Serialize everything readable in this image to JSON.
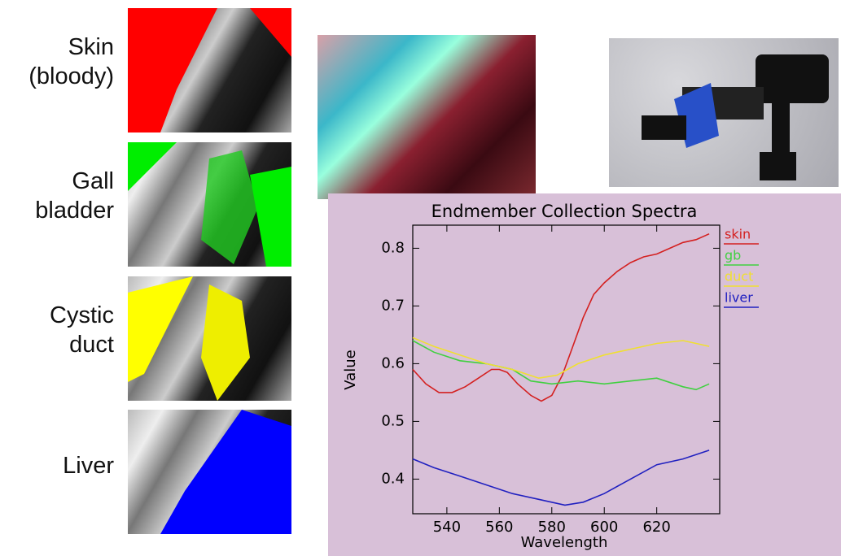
{
  "labels": [
    [
      "Skin",
      "(bloody)"
    ],
    [
      "Gall",
      "bladder"
    ],
    [
      "Cystic",
      "duct"
    ],
    [
      "Liver"
    ]
  ],
  "chart_data": {
    "type": "line",
    "title": "Endmember Collection Spectra",
    "x_label": "Wavelength",
    "y_label": "Value",
    "xlim": [
      527,
      644
    ],
    "xticks": [
      540,
      560,
      580,
      600,
      620
    ],
    "ylim": [
      0.34,
      0.84
    ],
    "yticks": [
      0.4,
      0.5,
      0.6,
      0.7,
      0.8
    ],
    "series": [
      {
        "name": "skin",
        "color": "#d42020",
        "x": [
          527,
          532,
          537,
          542,
          547,
          552,
          557,
          560,
          563,
          567,
          572,
          576,
          580,
          584,
          588,
          592,
          596,
          600,
          605,
          610,
          615,
          620,
          625,
          630,
          635,
          640
        ],
        "values": [
          0.59,
          0.565,
          0.55,
          0.55,
          0.56,
          0.575,
          0.59,
          0.59,
          0.585,
          0.565,
          0.545,
          0.535,
          0.545,
          0.58,
          0.63,
          0.68,
          0.72,
          0.74,
          0.76,
          0.775,
          0.785,
          0.79,
          0.8,
          0.81,
          0.815,
          0.825
        ]
      },
      {
        "name": "gb",
        "color": "#40d040",
        "x": [
          527,
          535,
          545,
          555,
          565,
          572,
          580,
          590,
          600,
          610,
          620,
          630,
          635,
          640
        ],
        "values": [
          0.64,
          0.62,
          0.605,
          0.6,
          0.59,
          0.57,
          0.565,
          0.57,
          0.565,
          0.57,
          0.575,
          0.56,
          0.555,
          0.565
        ]
      },
      {
        "name": "duct",
        "color": "#f0e030",
        "x": [
          527,
          535,
          545,
          555,
          565,
          575,
          582,
          590,
          600,
          610,
          620,
          630,
          635,
          640
        ],
        "values": [
          0.645,
          0.63,
          0.615,
          0.6,
          0.59,
          0.575,
          0.58,
          0.6,
          0.615,
          0.625,
          0.635,
          0.64,
          0.635,
          0.63
        ]
      },
      {
        "name": "liver",
        "color": "#2020c0",
        "x": [
          527,
          535,
          545,
          555,
          565,
          575,
          585,
          592,
          600,
          610,
          620,
          630,
          640
        ],
        "values": [
          0.435,
          0.42,
          0.405,
          0.39,
          0.375,
          0.365,
          0.355,
          0.36,
          0.375,
          0.4,
          0.425,
          0.435,
          0.45
        ]
      }
    ]
  }
}
